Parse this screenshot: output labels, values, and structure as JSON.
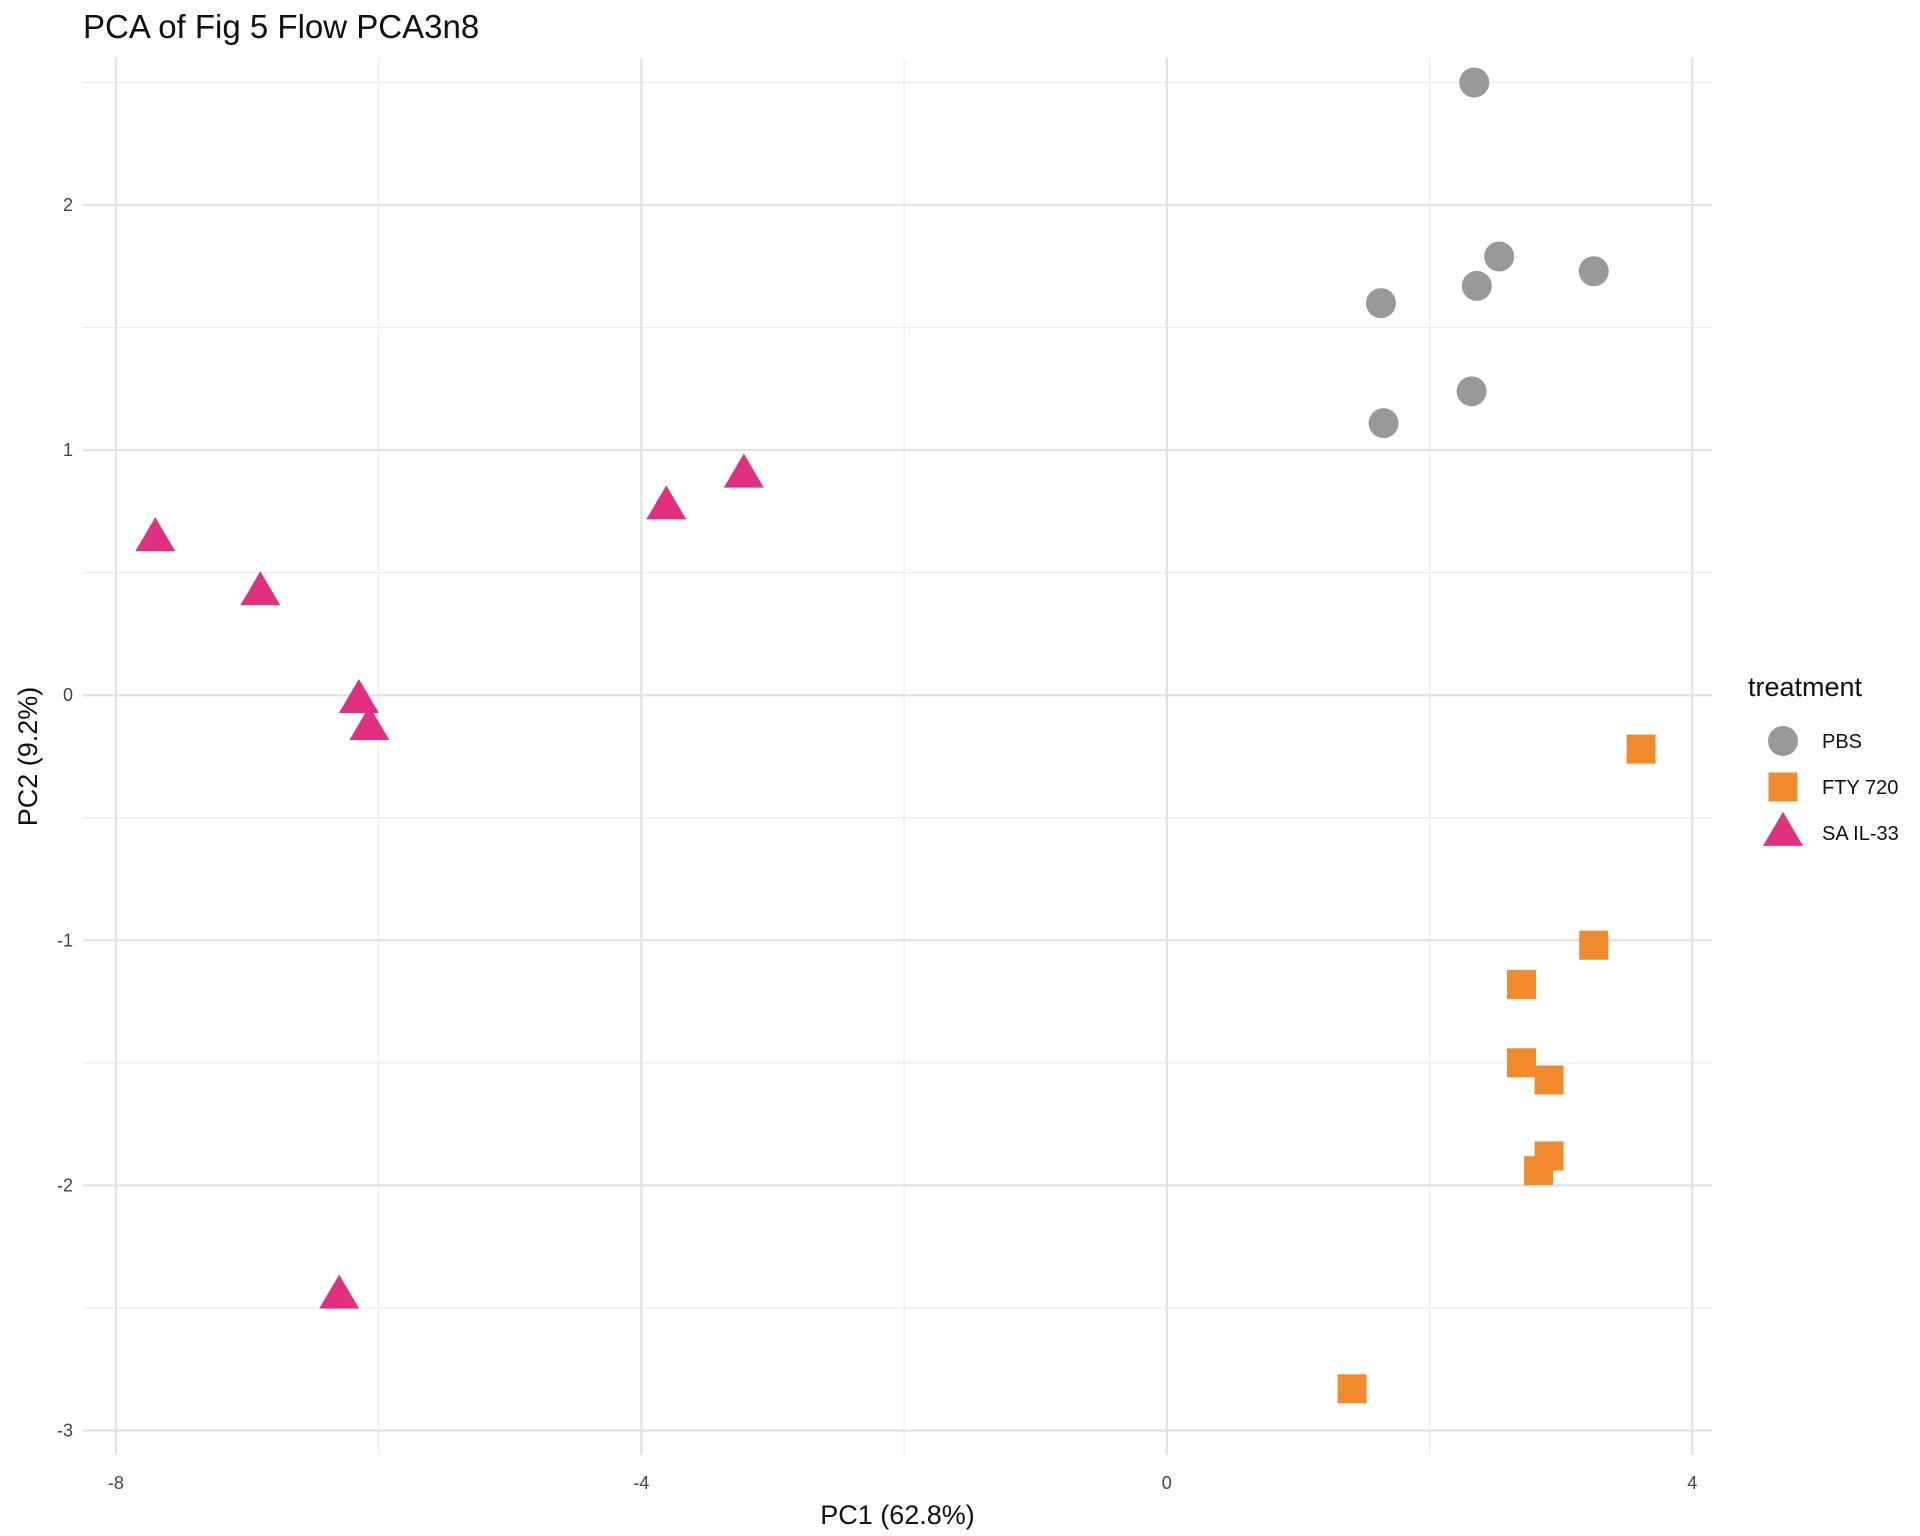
{
  "chart_data": {
    "type": "scatter",
    "title": "PCA of Fig 5 Flow PCA3n8",
    "xlabel": "PC1 (62.8%)",
    "ylabel": "PC2 (9.2%)",
    "xlim": [
      -8.25,
      4.15
    ],
    "ylim": [
      -3.1,
      2.6
    ],
    "xticks": [
      -8,
      -4,
      0,
      4
    ],
    "xtick_labels": [
      "-8",
      "-4",
      "0",
      "4"
    ],
    "yticks": [
      -3,
      -2,
      -1,
      0,
      1,
      2
    ],
    "ytick_labels": [
      "-3",
      "-2",
      "-1",
      "0",
      "1",
      "2"
    ],
    "grid": true,
    "legend": {
      "title": "treatment",
      "position": "right"
    },
    "series": [
      {
        "name": "PBS",
        "shape": "circle",
        "color": "#999999",
        "points": [
          [
            2.34,
            2.5
          ],
          [
            2.53,
            1.79
          ],
          [
            2.36,
            1.67
          ],
          [
            3.25,
            1.73
          ],
          [
            1.63,
            1.6
          ],
          [
            2.32,
            1.24
          ],
          [
            1.65,
            1.11
          ]
        ]
      },
      {
        "name": "FTY 720",
        "shape": "square",
        "color": "#F08A2C",
        "points": [
          [
            3.61,
            -0.22
          ],
          [
            3.25,
            -1.02
          ],
          [
            2.7,
            -1.18
          ],
          [
            2.7,
            -1.5
          ],
          [
            2.91,
            -1.57
          ],
          [
            2.91,
            -1.88
          ],
          [
            2.83,
            -1.94
          ],
          [
            1.41,
            -2.83
          ]
        ]
      },
      {
        "name": "SA IL-33",
        "shape": "triangle",
        "color": "#E0307F",
        "points": [
          [
            -7.7,
            0.64
          ],
          [
            -6.9,
            0.42
          ],
          [
            -6.15,
            -0.02
          ],
          [
            -6.07,
            -0.13
          ],
          [
            -3.81,
            0.77
          ],
          [
            -3.22,
            0.9
          ],
          [
            -6.3,
            -2.45
          ]
        ]
      }
    ]
  }
}
